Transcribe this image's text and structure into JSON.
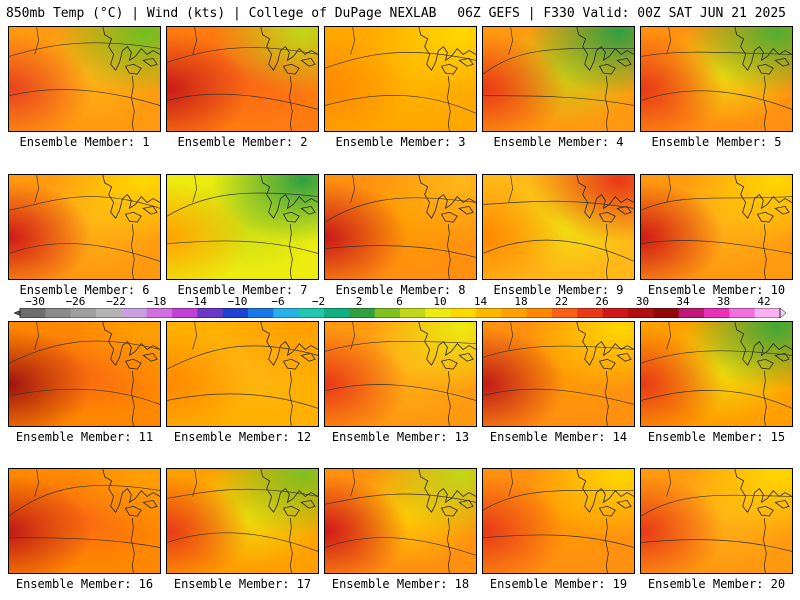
{
  "header": {
    "left_title": "850mb Temp (°C) | Wind (kts) | College of DuPage NEXLAB",
    "right_title": "06Z GEFS | F330 Valid: 00Z SAT JUN 21 2025"
  },
  "colorbar": {
    "labels": [
      "-30",
      "-26",
      "-22",
      "-18",
      "-14",
      "-10",
      "-6",
      "-2",
      "2",
      "6",
      "10",
      "14",
      "18",
      "22",
      "26",
      "30",
      "34",
      "38",
      "42"
    ],
    "colors": [
      "#6e6e6e",
      "#8a8a8a",
      "#a0a0a0",
      "#b4b4b4",
      "#c8a0e0",
      "#d070e0",
      "#c040d8",
      "#6a38c8",
      "#2040d0",
      "#1878e8",
      "#28b0e8",
      "#20c8b0",
      "#10b080",
      "#30a040",
      "#80c020",
      "#c0d818",
      "#ecec10",
      "#ffd800",
      "#ffb800",
      "#ffa000",
      "#ff8800",
      "#f86018",
      "#e83818",
      "#d01818",
      "#b01010",
      "#900a0a",
      "#c01878",
      "#e830b8",
      "#f070e0",
      "#f8b0f0"
    ]
  },
  "panels": [
    {
      "label": "Ensemble Member: 1",
      "scheme": {
        "base": "#ff9a10",
        "west": "#e84020",
        "ne": "#70c020",
        "mid": "#ffb818"
      }
    },
    {
      "label": "Ensemble Member: 2",
      "scheme": {
        "base": "#ff7a10",
        "west": "#c81818",
        "ne": "#c0d818",
        "mid": "#f86018"
      }
    },
    {
      "label": "Ensemble Member: 3",
      "scheme": {
        "base": "#ffa800",
        "west": "#ff8800",
        "ne": "#ffd800",
        "mid": "#ffb800"
      }
    },
    {
      "label": "Ensemble Member: 4",
      "scheme": {
        "base": "#ff9a10",
        "west": "#e83818",
        "ne": "#30a040",
        "mid": "#c0d818"
      }
    },
    {
      "label": "Ensemble Member: 5",
      "scheme": {
        "base": "#ff9010",
        "west": "#e83818",
        "ne": "#50b030",
        "mid": "#ecec10"
      }
    },
    {
      "label": "Ensemble Member: 6",
      "scheme": {
        "base": "#ff9a10",
        "west": "#d01818",
        "ne": "#ffd800",
        "mid": "#ffb818"
      }
    },
    {
      "label": "Ensemble Member: 7",
      "scheme": {
        "base": "#ecec10",
        "west": "#ffa000",
        "ne": "#30a040",
        "mid": "#c0d818"
      }
    },
    {
      "label": "Ensemble Member: 8",
      "scheme": {
        "base": "#ff9010",
        "west": "#c81818",
        "ne": "#ffb818",
        "mid": "#ffa000"
      }
    },
    {
      "label": "Ensemble Member: 9",
      "scheme": {
        "base": "#ffb818",
        "west": "#ff8800",
        "ne": "#e83818",
        "mid": "#ecec10"
      }
    },
    {
      "label": "Ensemble Member: 10",
      "scheme": {
        "base": "#ff9a10",
        "west": "#d01818",
        "ne": "#ffd800",
        "mid": "#ffb818"
      }
    },
    {
      "label": "Ensemble Member: 11",
      "scheme": {
        "base": "#ff8800",
        "west": "#a01010",
        "ne": "#ffa000",
        "mid": "#f86018"
      }
    },
    {
      "label": "Ensemble Member: 12",
      "scheme": {
        "base": "#ffb000",
        "west": "#ff8800",
        "ne": "#ffa000",
        "mid": "#ffb818"
      }
    },
    {
      "label": "Ensemble Member: 13",
      "scheme": {
        "base": "#ff9a10",
        "west": "#e83818",
        "ne": "#ecec10",
        "mid": "#ffb818"
      }
    },
    {
      "label": "Ensemble Member: 14",
      "scheme": {
        "base": "#ff9010",
        "west": "#c01818",
        "ne": "#ffd800",
        "mid": "#ffa000"
      }
    },
    {
      "label": "Ensemble Member: 15",
      "scheme": {
        "base": "#ffa000",
        "west": "#e83818",
        "ne": "#40a838",
        "mid": "#ecec10"
      }
    },
    {
      "label": "Ensemble Member: 16",
      "scheme": {
        "base": "#ff8800",
        "west": "#c01818",
        "ne": "#ffa000",
        "mid": "#f86018"
      }
    },
    {
      "label": "Ensemble Member: 17",
      "scheme": {
        "base": "#ffa000",
        "west": "#e83818",
        "ne": "#80c020",
        "mid": "#ecec10"
      }
    },
    {
      "label": "Ensemble Member: 18",
      "scheme": {
        "base": "#ff9010",
        "west": "#d01818",
        "ne": "#c0d818",
        "mid": "#ffd800"
      }
    },
    {
      "label": "Ensemble Member: 19",
      "scheme": {
        "base": "#ff9010",
        "west": "#e83818",
        "ne": "#ffd800",
        "mid": "#ffa000"
      }
    },
    {
      "label": "Ensemble Member: 20",
      "scheme": {
        "base": "#ff9a10",
        "west": "#e83818",
        "ne": "#ffd800",
        "mid": "#ffb818"
      }
    }
  ]
}
